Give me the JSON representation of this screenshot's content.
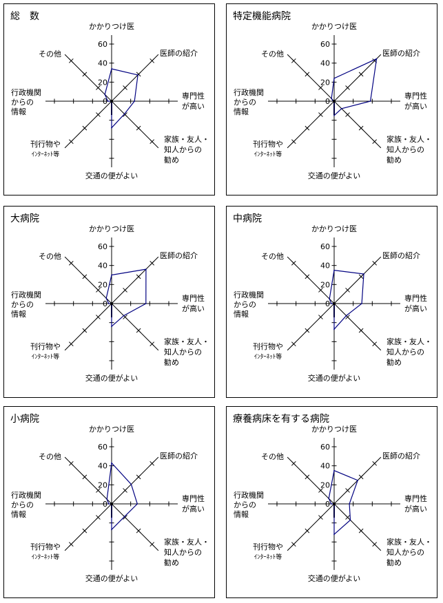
{
  "chart_data": [
    {
      "type": "radar",
      "title": "総　数",
      "values": [
        34,
        39,
        24,
        19,
        28,
        0,
        4,
        10
      ]
    },
    {
      "type": "radar",
      "title": "特定機能病院",
      "values": [
        24,
        63,
        38,
        11,
        15,
        0,
        1,
        4
      ]
    },
    {
      "type": "radar",
      "title": "大病院",
      "values": [
        30,
        51,
        36,
        18,
        24,
        0,
        3,
        8
      ]
    },
    {
      "type": "radar",
      "title": "中病院",
      "values": [
        35,
        44,
        29,
        18,
        27,
        0,
        3,
        7
      ]
    },
    {
      "type": "radar",
      "title": "小病院",
      "values": [
        43,
        29,
        27,
        19,
        27,
        0,
        3,
        7
      ]
    },
    {
      "type": "radar",
      "title": "療養病床を有する病院",
      "values": [
        35,
        35,
        16,
        24,
        32,
        0,
        3,
        8
      ]
    }
  ],
  "axes": [
    {
      "lines": [
        "かかりつけ医"
      ]
    },
    {
      "lines": [
        "医師の紹介"
      ]
    },
    {
      "lines": [
        "専門性",
        "が高い"
      ]
    },
    {
      "lines": [
        "家族・友人・",
        "知人からの",
        "勧め"
      ]
    },
    {
      "lines": [
        "交通の便がよい"
      ]
    },
    {
      "lines": [
        "刊行物や",
        "ｲﾝﾀｰﾈｯﾄ等"
      ]
    },
    {
      "lines": [
        "行政機関",
        "からの",
        "情報"
      ]
    },
    {
      "lines": [
        "その他"
      ]
    }
  ],
  "scale": {
    "min": 0,
    "max": 60,
    "step": 20,
    "tick_labels": [
      "0",
      "20",
      "40",
      "60"
    ]
  },
  "series_color": "#000080"
}
